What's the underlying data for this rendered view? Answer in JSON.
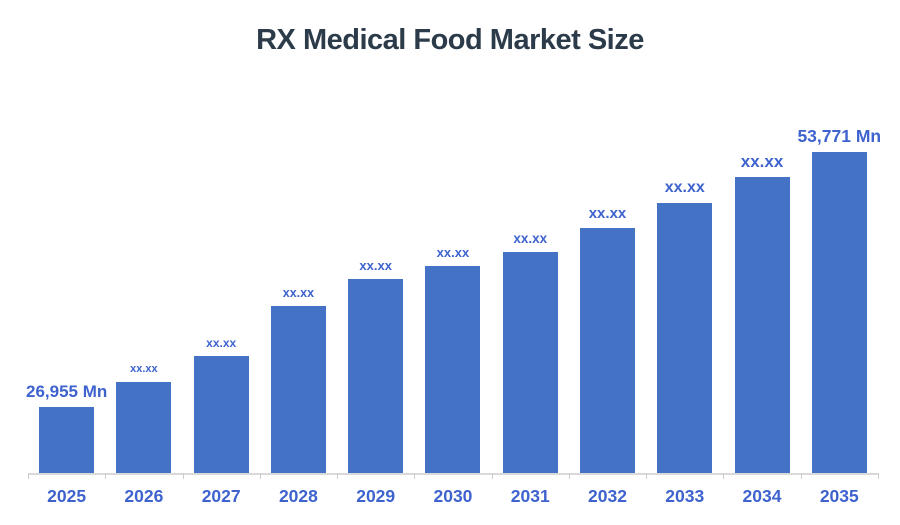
{
  "title": "RX Medical Food Market Size",
  "colors": {
    "bar": "#4472C4",
    "data_label": "#3E63CE",
    "title_text": "#2C3B4A",
    "axis_line": "#D9D9D9",
    "background": "#FFFFFF"
  },
  "chart_data": {
    "type": "bar",
    "title": "RX Medical Food Market Size",
    "categories": [
      "2025",
      "2026",
      "2027",
      "2028",
      "2029",
      "2030",
      "2031",
      "2032",
      "2033",
      "2034",
      "2035"
    ],
    "series": [
      {
        "name": "RX Medical Food Market Size (Mn)",
        "values": [
          26955,
          29600,
          32300,
          37600,
          40400,
          41800,
          43200,
          45800,
          48400,
          51150,
          53771
        ]
      }
    ],
    "data_labels": [
      "26,955 Mn",
      "xx.xx",
      "xx.xx",
      "xx.xx",
      "xx.xx",
      "xx.xx",
      "xx.xx",
      "xx.xx",
      "xx.xx",
      "xx.xx",
      "53,771 Mn"
    ],
    "unit": "Mn",
    "xlabel": "",
    "ylabel": "",
    "ylim": [
      20000,
      55000
    ],
    "grid": false,
    "legend": false,
    "y_axis_visible": false,
    "note": "Only first and last bars show numeric labels; intermediate bars are masked as xx.xx and their values are estimated from bar heights."
  }
}
